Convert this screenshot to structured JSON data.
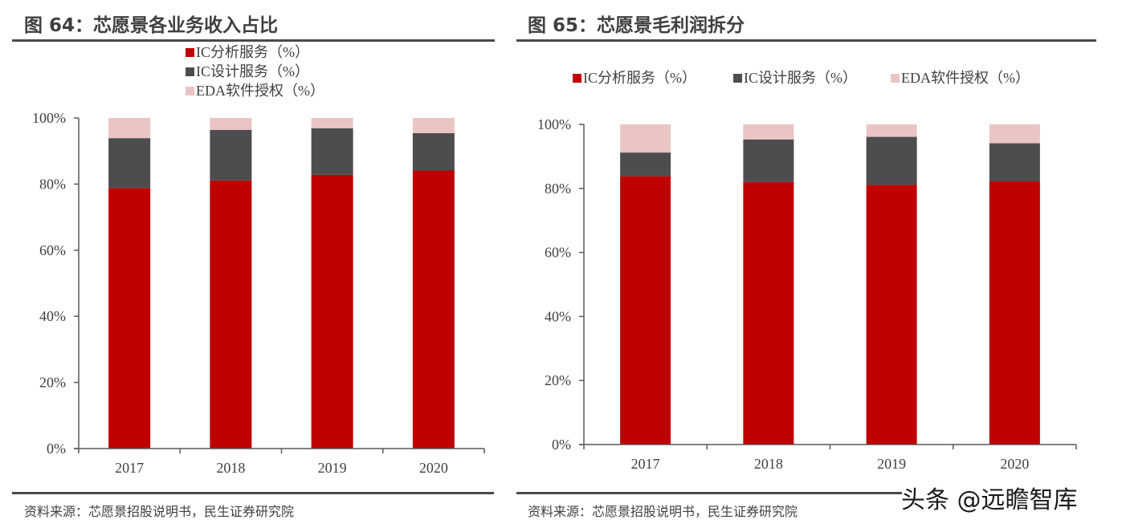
{
  "left_figure": {
    "title": "图 64：芯愿景各业务收入占比",
    "source": "资料来源：芯愿景招股说明书，民生证券研究院"
  },
  "right_figure": {
    "title": "图 65：芯愿景毛利润拆分",
    "source": "资料来源：芯愿景招股说明书，民生证券研究院"
  },
  "watermark": "头条 @远瞻智库",
  "colors": {
    "ic_analysis": "#c00000",
    "ic_design": "#4d4d4f",
    "eda_license": "#ebc4c4",
    "axis": "#595959",
    "rule": "#4a4a4a"
  },
  "chart_data": [
    {
      "type": "bar",
      "stacked": true,
      "title": "图 64：芯愿景各业务收入占比",
      "xlabel": "",
      "ylabel": "",
      "categories": [
        "2017",
        "2018",
        "2019",
        "2020"
      ],
      "yticks": [
        "0%",
        "20%",
        "40%",
        "60%",
        "80%",
        "100%"
      ],
      "ylim": [
        0,
        100
      ],
      "legend_position": "top-center-vertical",
      "series": [
        {
          "name": "IC分析服务（%）",
          "color_key": "ic_analysis",
          "values": [
            78.8,
            81.1,
            82.8,
            84.1
          ]
        },
        {
          "name": "IC设计服务（%）",
          "color_key": "ic_design",
          "values": [
            15.1,
            15.3,
            14.1,
            11.3
          ]
        },
        {
          "name": "EDA软件授权（%）",
          "color_key": "eda_license",
          "values": [
            6.1,
            3.6,
            3.1,
            4.6
          ]
        }
      ]
    },
    {
      "type": "bar",
      "stacked": true,
      "title": "图 65：芯愿景毛利润拆分",
      "xlabel": "",
      "ylabel": "",
      "categories": [
        "2017",
        "2018",
        "2019",
        "2020"
      ],
      "yticks": [
        "0%",
        "20%",
        "40%",
        "60%",
        "80%",
        "100%"
      ],
      "ylim": [
        0,
        100
      ],
      "legend_position": "top-horizontal",
      "series": [
        {
          "name": "IC分析服务（%）",
          "color_key": "ic_analysis",
          "values": [
            83.8,
            82.0,
            81.1,
            82.2
          ]
        },
        {
          "name": "IC设计服务（%）",
          "color_key": "ic_design",
          "values": [
            7.4,
            13.3,
            15.0,
            11.9
          ]
        },
        {
          "name": "EDA软件授权（%）",
          "color_key": "eda_license",
          "values": [
            8.8,
            4.7,
            3.9,
            5.9
          ]
        }
      ]
    }
  ]
}
